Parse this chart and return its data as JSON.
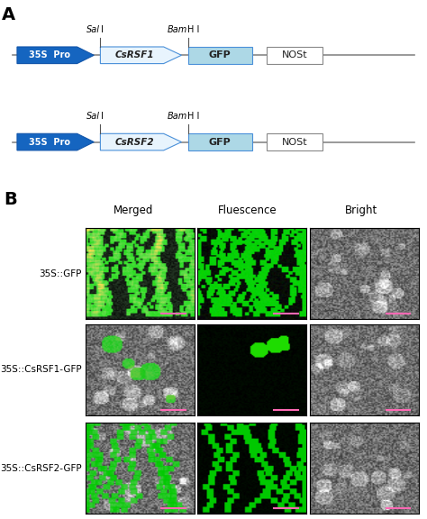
{
  "panel_A_label": "A",
  "panel_B_label": "B",
  "construct1_gene": "CsRSF1",
  "construct2_gene": "CsRSF2",
  "promoter_label": "35S  Pro",
  "gfp_label": "GFP",
  "nost_label": "NOSt",
  "sal1_label": "SalI",
  "bamh1_label": "BamH I",
  "col_headers": [
    "Merged",
    "Fluescence",
    "Bright"
  ],
  "row_labels": [
    "35S::GFP",
    "35S::CsRSF1-GFP",
    "35S::CsRSF2-GFP"
  ],
  "promoter_color": "#1565C0",
  "gene_arrow_color": "#E8F4FD",
  "gene_arrow_border": "#4A90D9",
  "gfp_color": "#ADD8E6",
  "nost_color": "#FFFFFF",
  "bg_color": "#FFFFFF",
  "line_color": "#555555",
  "text_color": "#000000",
  "figsize": [
    4.74,
    5.76
  ],
  "dpi": 100
}
